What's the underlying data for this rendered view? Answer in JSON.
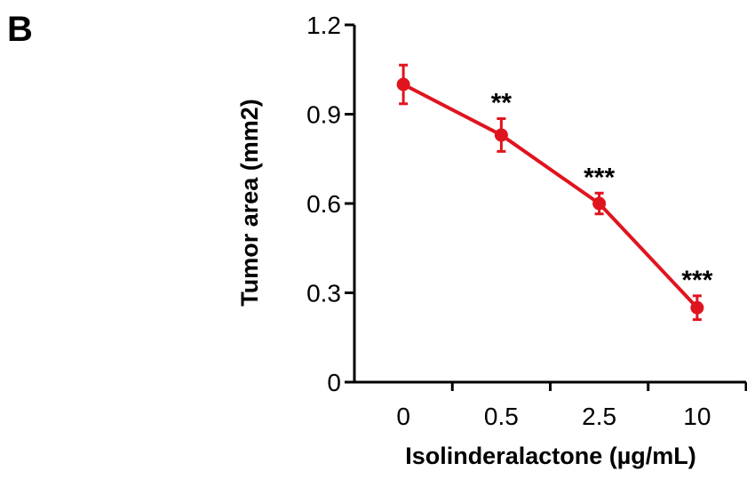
{
  "panel_label": "B",
  "chart_data": {
    "type": "line",
    "xlabel": "Isolinderalactone (µg/mL)",
    "ylabel": "Tumor area (mm2)",
    "categories": [
      "0",
      "0.5",
      "2.5",
      "10"
    ],
    "ylim": [
      0,
      1.2
    ],
    "yticks": [
      "0",
      "0.3",
      "0.6",
      "0.9",
      "1.2"
    ],
    "grid": false,
    "series": [
      {
        "color": "#e0141e",
        "values": [
          1.0,
          0.83,
          0.6,
          0.25
        ],
        "errors": [
          0.065,
          0.055,
          0.035,
          0.04
        ]
      }
    ],
    "annotations": [
      "",
      "**",
      "***",
      "***"
    ]
  }
}
